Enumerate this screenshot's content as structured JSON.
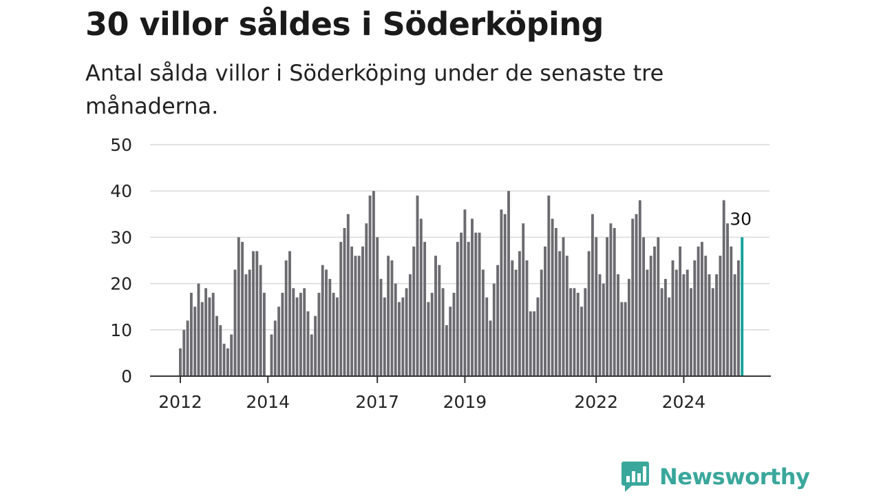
{
  "title": "30 villor såldes i Söderköping",
  "subtitle": "Antal sålda villor i Söderköping under de senaste tre månaderna.",
  "brand": {
    "name": "Newsworthy",
    "icon": "bar-chart-speech-bubble-icon",
    "color": "#3aa79c"
  },
  "colors": {
    "bar": "#6b6b70",
    "highlight": "#14a39a",
    "grid": "#d9d9d9",
    "axis": "#333333"
  },
  "chart_data": {
    "type": "bar",
    "x_start": "2012-01",
    "frequency": "monthly",
    "values": [
      6,
      10,
      12,
      18,
      15,
      20,
      16,
      19,
      17,
      18,
      13,
      11,
      7,
      6,
      9,
      23,
      30,
      29,
      22,
      23,
      27,
      27,
      24,
      18,
      0,
      9,
      12,
      15,
      18,
      25,
      27,
      19,
      17,
      18,
      19,
      14,
      9,
      13,
      18,
      24,
      23,
      21,
      18,
      17,
      29,
      32,
      35,
      28,
      26,
      26,
      28,
      33,
      39,
      40,
      30,
      21,
      17,
      26,
      25,
      20,
      16,
      17,
      19,
      22,
      28,
      39,
      34,
      29,
      16,
      18,
      26,
      24,
      19,
      11,
      15,
      18,
      29,
      31,
      36,
      29,
      34,
      31,
      31,
      23,
      17,
      12,
      20,
      24,
      36,
      35,
      40,
      25,
      23,
      27,
      33,
      25,
      14,
      14,
      17,
      23,
      28,
      39,
      34,
      32,
      27,
      30,
      26,
      19,
      19,
      18,
      15,
      19,
      27,
      35,
      30,
      22,
      20,
      30,
      33,
      32,
      22,
      16,
      16,
      21,
      34,
      35,
      38,
      30,
      23,
      26,
      28,
      30,
      19,
      21,
      17,
      25,
      23,
      28,
      22,
      23,
      19,
      25,
      28,
      29,
      26,
      22,
      19,
      22,
      26,
      38,
      33,
      28,
      22,
      25,
      30
    ],
    "highlight_last": true,
    "last_label": "30",
    "x_ticks": [
      {
        "label": "2012",
        "date": "2012-01"
      },
      {
        "label": "2014",
        "date": "2014-01"
      },
      {
        "label": "2017",
        "date": "2016-07"
      },
      {
        "label": "2019",
        "date": "2018-07"
      },
      {
        "label": "2022",
        "date": "2021-07"
      },
      {
        "label": "2024",
        "date": "2023-07"
      }
    ],
    "y_ticks": [
      "0",
      "10",
      "20",
      "30",
      "40",
      "50"
    ],
    "ylim": [
      0,
      50
    ],
    "grid": true
  }
}
